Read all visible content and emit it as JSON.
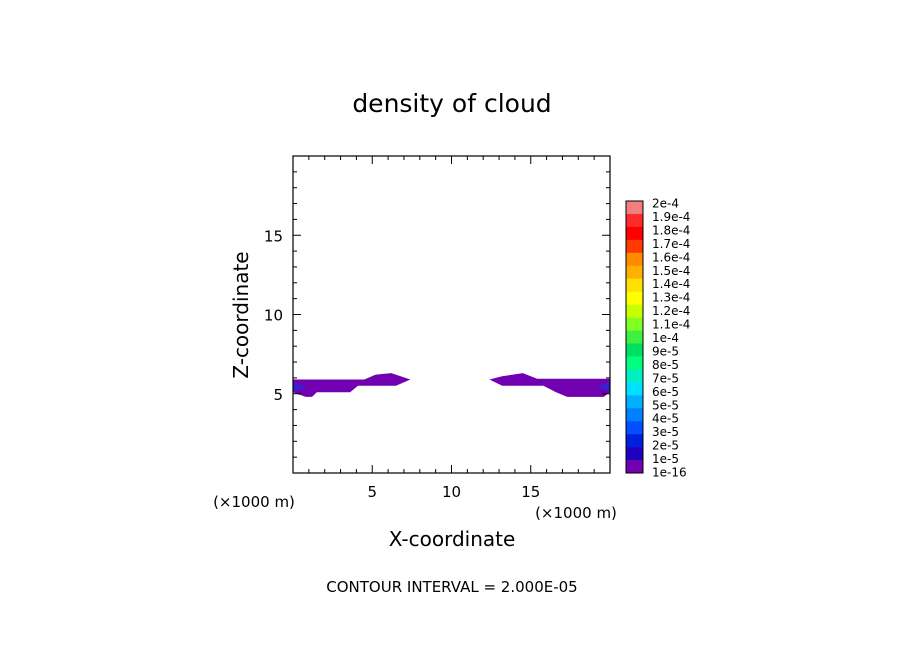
{
  "chart_data": {
    "type": "heatmap",
    "title": "density of cloud",
    "xlabel": "X-coordinate",
    "ylabel": "Z-coordinate",
    "x_unit_left": "(×1000 m)",
    "x_unit_right": "(×1000 m)",
    "footer": "CONTOUR INTERVAL = 2.000E-05",
    "xlim": [
      0,
      20
    ],
    "ylim": [
      0,
      20
    ],
    "x_ticks": [
      5,
      10,
      15
    ],
    "y_ticks": [
      5,
      10,
      15
    ],
    "colorbar": {
      "labels": [
        "2e-4",
        "1.9e-4",
        "1.8e-4",
        "1.7e-4",
        "1.6e-4",
        "1.5e-4",
        "1.4e-4",
        "1.3e-4",
        "1.2e-4",
        "1.1e-4",
        "1e-4",
        "9e-5",
        "8e-5",
        "7e-5",
        "6e-5",
        "5e-5",
        "4e-5",
        "3e-5",
        "2e-5",
        "1e-5",
        "1e-16"
      ],
      "colors": [
        "#f08080",
        "#ff2a2a",
        "#ff0000",
        "#ff3a00",
        "#ff8a00",
        "#ffb000",
        "#ffe000",
        "#ffff00",
        "#c8ff00",
        "#80ff20",
        "#40f040",
        "#00e060",
        "#00ff80",
        "#00f0c0",
        "#00e0ff",
        "#00b0ff",
        "#0080ff",
        "#0050ff",
        "#0020e0",
        "#2000c0",
        "#7000b0"
      ]
    },
    "regions": [
      {
        "name": "cloud-left",
        "fill": "#7000b0",
        "polygon": [
          [
            0,
            5.9
          ],
          [
            4.5,
            5.9
          ],
          [
            5.2,
            6.2
          ],
          [
            6.2,
            6.3
          ],
          [
            7.4,
            5.9
          ],
          [
            6.5,
            5.5
          ],
          [
            4.1,
            5.5
          ],
          [
            3.6,
            5.1
          ],
          [
            1.5,
            5.1
          ],
          [
            1.2,
            4.8
          ],
          [
            0.8,
            4.8
          ],
          [
            0,
            5.1
          ]
        ]
      },
      {
        "name": "cloud-right",
        "fill": "#7000b0",
        "polygon": [
          [
            12.4,
            5.9
          ],
          [
            13.2,
            6.1
          ],
          [
            14.5,
            6.3
          ],
          [
            15.4,
            5.95
          ],
          [
            20,
            5.95
          ],
          [
            20,
            5.1
          ],
          [
            19.6,
            4.8
          ],
          [
            17.3,
            4.8
          ],
          [
            16.6,
            5.1
          ],
          [
            15.8,
            5.5
          ],
          [
            13.2,
            5.5
          ]
        ]
      },
      {
        "name": "core-left",
        "fill": "#3a1fd0",
        "polygon": [
          [
            0,
            5.75
          ],
          [
            0.5,
            5.55
          ],
          [
            0.8,
            5.4
          ],
          [
            0.5,
            5.25
          ],
          [
            0,
            5.2
          ]
        ]
      },
      {
        "name": "core-right",
        "fill": "#3a1fd0",
        "polygon": [
          [
            20,
            5.75
          ],
          [
            19.5,
            5.6
          ],
          [
            19.2,
            5.45
          ],
          [
            19.5,
            5.3
          ],
          [
            20,
            5.2
          ]
        ]
      }
    ]
  }
}
